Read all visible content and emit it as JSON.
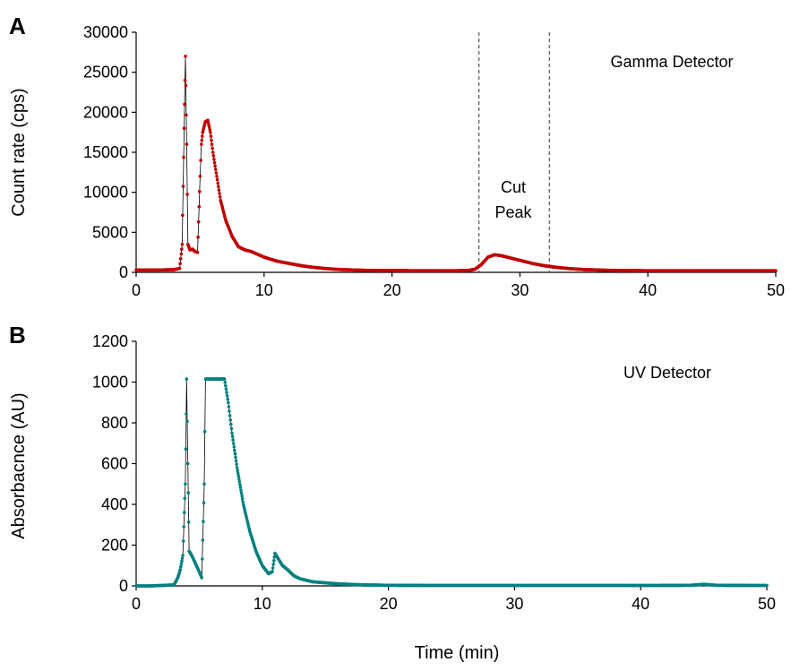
{
  "chart_data": [
    {
      "panel_label": "A",
      "type": "line",
      "title": "",
      "legend": "Gamma Detector",
      "ylabel": "Count rate (cps)",
      "xlabel": "",
      "xlim": [
        0,
        50
      ],
      "ylim": [
        0,
        30000
      ],
      "xticks": [
        0,
        10,
        20,
        30,
        40,
        50
      ],
      "yticks": [
        0,
        5000,
        10000,
        15000,
        20000,
        25000,
        30000
      ],
      "series": [
        {
          "color": "#c00000",
          "x": [
            0,
            1,
            2,
            3,
            3.4,
            3.6,
            3.75,
            3.85,
            3.95,
            4.05,
            4.2,
            4.4,
            4.6,
            4.8,
            5.0,
            5.1,
            5.2,
            5.4,
            5.6,
            5.8,
            6.0,
            6.3,
            6.6,
            7.0,
            7.5,
            8.0,
            8.5,
            9.0,
            10,
            11,
            12,
            13,
            14,
            15,
            16,
            18,
            20,
            22,
            24,
            25,
            26,
            26.5,
            27,
            27.5,
            28,
            28.5,
            29,
            30,
            31,
            32,
            33,
            34,
            35,
            37,
            40,
            45,
            50
          ],
          "y": [
            300,
            300,
            300,
            350,
            500,
            3500,
            18000,
            27000,
            16000,
            3500,
            2800,
            2900,
            2600,
            2500,
            12000,
            16000,
            17500,
            18800,
            19000,
            17500,
            15000,
            12000,
            9000,
            6500,
            4500,
            3200,
            2800,
            2600,
            1900,
            1400,
            1100,
            800,
            600,
            450,
            350,
            250,
            220,
            200,
            200,
            200,
            250,
            400,
            1000,
            1900,
            2200,
            2100,
            1900,
            1500,
            1100,
            800,
            600,
            450,
            350,
            250,
            200,
            200,
            200
          ]
        }
      ],
      "annotations": [
        {
          "lines": [
            "Cut",
            "Peak"
          ],
          "x_range": [
            26.8,
            32.3
          ]
        }
      ]
    },
    {
      "panel_label": "B",
      "type": "line",
      "title": "",
      "legend": "UV Detector",
      "ylabel": "Absorbacnce (AU)",
      "xlabel": "Time (min)",
      "xlim": [
        0,
        50
      ],
      "ylim": [
        0,
        1200
      ],
      "xticks": [
        0,
        10,
        20,
        30,
        40,
        50
      ],
      "yticks": [
        0,
        200,
        400,
        600,
        800,
        1000,
        1200
      ],
      "series": [
        {
          "color": "#008080",
          "x": [
            0,
            1,
            2,
            3,
            3.3,
            3.5,
            3.7,
            3.9,
            4.0,
            4.1,
            4.2,
            4.4,
            4.7,
            5.0,
            5.2,
            5.4,
            5.5,
            5.6,
            6,
            6.5,
            7.0,
            7.3,
            7.6,
            8.0,
            8.5,
            9,
            9.5,
            10,
            10.5,
            10.8,
            11,
            11.3,
            11.6,
            12,
            12.5,
            13,
            14,
            16,
            18,
            20,
            25,
            30,
            40,
            44,
            45,
            46,
            50
          ],
          "y": [
            0,
            0,
            2,
            5,
            40,
            80,
            150,
            500,
            1015,
            600,
            170,
            150,
            110,
            70,
            40,
            500,
            1015,
            1015,
            1015,
            1015,
            1015,
            900,
            750,
            580,
            400,
            270,
            170,
            100,
            60,
            70,
            160,
            130,
            100,
            80,
            50,
            35,
            20,
            10,
            5,
            3,
            2,
            2,
            2,
            3,
            8,
            3,
            2
          ]
        }
      ]
    }
  ]
}
